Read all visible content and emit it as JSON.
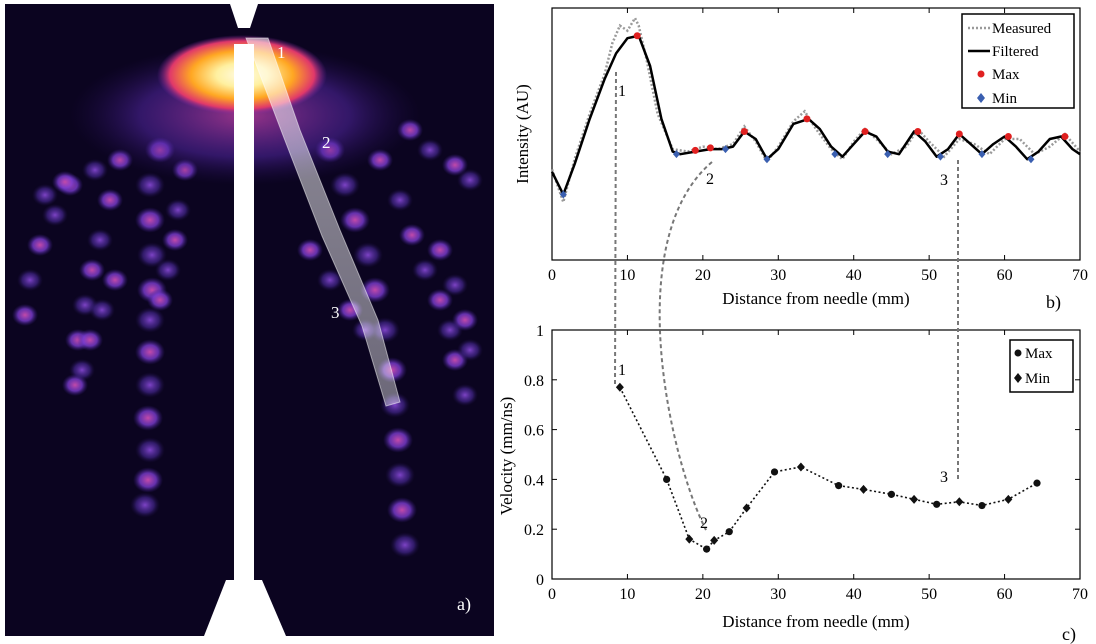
{
  "panel_a": {
    "label": "a)",
    "markers": [
      "1",
      "2",
      "3"
    ],
    "colors": {
      "background": "#0a0418",
      "core": "#fff6c0",
      "hot": "#ffb020",
      "warm": "#d8306e",
      "cool": "#7a3cc8",
      "dim": "#3a1e86",
      "needle": "#ffffff"
    }
  },
  "chart_data": [
    {
      "type": "line",
      "panel": "b)",
      "title": "",
      "xlabel": "Distance from needle (mm)",
      "ylabel": "Intensity (AU)",
      "xlim": [
        0,
        70
      ],
      "ylim": [
        0,
        1
      ],
      "x_ticks": [
        "0",
        "10",
        "20",
        "30",
        "40",
        "50",
        "60",
        "70"
      ],
      "y_ticks": [],
      "legend": {
        "placement": "top-right",
        "entries": [
          "Measured",
          "Filtered",
          "Max",
          "Min"
        ]
      },
      "series": [
        {
          "name": "Filtered",
          "x": [
            0,
            1.5,
            3,
            5,
            7,
            8.5,
            10,
            11.5,
            13,
            14.5,
            16,
            17,
            19,
            21,
            22.5,
            24,
            25.5,
            27,
            28.5,
            30,
            32,
            34,
            35.5,
            37,
            38.5,
            40,
            41.5,
            43,
            44.5,
            46,
            48,
            49.5,
            51,
            52.5,
            54,
            55.5,
            57,
            58.5,
            60,
            61.5,
            63,
            64.5,
            66,
            67.5,
            69,
            70
          ],
          "y": [
            0.35,
            0.26,
            0.38,
            0.56,
            0.72,
            0.82,
            0.88,
            0.89,
            0.77,
            0.56,
            0.43,
            0.42,
            0.43,
            0.44,
            0.44,
            0.45,
            0.51,
            0.48,
            0.4,
            0.44,
            0.54,
            0.56,
            0.52,
            0.45,
            0.41,
            0.46,
            0.51,
            0.49,
            0.43,
            0.42,
            0.51,
            0.47,
            0.41,
            0.44,
            0.5,
            0.46,
            0.42,
            0.46,
            0.49,
            0.45,
            0.4,
            0.43,
            0.48,
            0.49,
            0.44,
            0.42
          ]
        },
        {
          "name": "Measured",
          "x": [
            0,
            1.5,
            3,
            5,
            7,
            8,
            9,
            10,
            11,
            11.5,
            12.5,
            14,
            16,
            18,
            20,
            22,
            24,
            25.5,
            27,
            28.5,
            30,
            32,
            33.5,
            35,
            37,
            38.5,
            40,
            41.5,
            43,
            45,
            47,
            48.5,
            50,
            52,
            54,
            56,
            58,
            60,
            62,
            64,
            66,
            68,
            70
          ],
          "y": [
            0.36,
            0.23,
            0.4,
            0.58,
            0.74,
            0.86,
            0.93,
            0.91,
            0.96,
            0.93,
            0.8,
            0.58,
            0.44,
            0.43,
            0.45,
            0.44,
            0.46,
            0.53,
            0.47,
            0.39,
            0.45,
            0.55,
            0.59,
            0.52,
            0.44,
            0.4,
            0.47,
            0.52,
            0.48,
            0.42,
            0.45,
            0.52,
            0.47,
            0.41,
            0.48,
            0.46,
            0.42,
            0.48,
            0.48,
            0.42,
            0.45,
            0.5,
            0.43
          ]
        },
        {
          "name": "Max",
          "x": [
            11.3,
            19,
            21,
            25.5,
            33.8,
            41.5,
            48.5,
            54,
            60.5,
            68
          ],
          "y": [
            0.89,
            0.435,
            0.445,
            0.51,
            0.56,
            0.51,
            0.51,
            0.5,
            0.49,
            0.49
          ]
        },
        {
          "name": "Min",
          "x": [
            1.5,
            16.5,
            23,
            28.5,
            37.5,
            44.5,
            51.5,
            57,
            63.5
          ],
          "y": [
            0.26,
            0.42,
            0.44,
            0.4,
            0.42,
            0.42,
            0.41,
            0.42,
            0.4
          ]
        }
      ],
      "annotations": [
        "1",
        "2",
        "3"
      ]
    },
    {
      "type": "scatter",
      "panel": "c)",
      "title": "",
      "xlabel": "Distance from needle (mm)",
      "ylabel": "Velocity (mm/ns)",
      "xlim": [
        0,
        70
      ],
      "ylim": [
        0,
        1
      ],
      "x_ticks": [
        "0",
        "10",
        "20",
        "30",
        "40",
        "50",
        "60",
        "70"
      ],
      "y_ticks": [
        "0",
        "0.2",
        "0.4",
        "0.6",
        "0.8",
        "1"
      ],
      "legend": {
        "placement": "top-right",
        "entries": [
          "Max",
          "Min"
        ]
      },
      "series": [
        {
          "name": "Max",
          "x": [
            15.2,
            20.5,
            23.5,
            29.5,
            38,
            45,
            51,
            57,
            64.3
          ],
          "y": [
            0.4,
            0.12,
            0.19,
            0.43,
            0.375,
            0.34,
            0.3,
            0.295,
            0.385
          ]
        },
        {
          "name": "Min",
          "x": [
            9,
            18.2,
            21.5,
            25.8,
            33,
            41.3,
            48,
            54,
            60.5
          ],
          "y": [
            0.77,
            0.16,
            0.155,
            0.285,
            0.45,
            0.36,
            0.32,
            0.31,
            0.32
          ]
        }
      ],
      "annotations": [
        "1",
        "2",
        "3"
      ]
    }
  ],
  "labels": {
    "b_xlabel": "Distance from needle (mm)",
    "b_ylabel": "Intensity (AU)",
    "c_xlabel": "Distance from needle (mm)",
    "c_ylabel": "Velocity (mm/ns)",
    "b_panel": "b)",
    "c_panel": "c)",
    "legend_b": [
      "Measured",
      "Filtered",
      "Max",
      "Min"
    ],
    "legend_c": [
      "Max",
      "Min"
    ],
    "marker_1": "1",
    "marker_2": "2",
    "marker_3": "3"
  },
  "colors": {
    "measured": "#9a9a9a",
    "filtered": "#000000",
    "max_b": "#e02020",
    "min_b": "#3a5fb0",
    "points_c": "#111111",
    "dashed": "#777777"
  }
}
